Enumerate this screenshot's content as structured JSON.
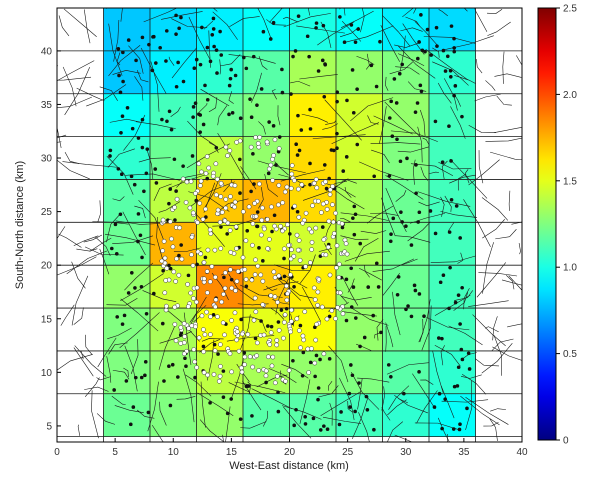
{
  "chart_data": {
    "type": "heatmap",
    "title": "",
    "xlabel": "West-East distance (km)",
    "ylabel": "South-North distance (km)",
    "xlim": [
      0,
      40
    ],
    "ylim": [
      3.5,
      44
    ],
    "xticks": [
      0,
      5,
      10,
      15,
      20,
      25,
      30,
      35,
      40
    ],
    "yticks": [
      5,
      10,
      15,
      20,
      25,
      30,
      35,
      40
    ],
    "grid": true,
    "cell_x_edges": [
      4,
      8,
      12,
      16,
      20,
      24,
      28,
      32,
      36
    ],
    "cell_y_edges": [
      4,
      8,
      12,
      16,
      20,
      24,
      28,
      32,
      36,
      40,
      44
    ],
    "cell_values": [
      [
        1.2,
        1.25,
        1.3,
        1.15,
        1.15,
        1.1,
        1.05,
        0.95
      ],
      [
        1.25,
        1.3,
        1.4,
        1.35,
        1.3,
        1.25,
        1.15,
        1.05
      ],
      [
        1.25,
        1.35,
        1.55,
        1.5,
        1.55,
        1.3,
        1.2,
        1.1
      ],
      [
        1.3,
        1.45,
        1.85,
        1.7,
        1.6,
        1.3,
        1.2,
        1.1
      ],
      [
        1.2,
        1.75,
        1.5,
        1.5,
        1.45,
        1.35,
        1.2,
        1.1
      ],
      [
        1.15,
        1.4,
        1.7,
        1.75,
        1.65,
        1.35,
        1.2,
        1.1
      ],
      [
        1.05,
        1.2,
        1.4,
        1.3,
        1.65,
        1.45,
        1.25,
        1.1
      ],
      [
        0.95,
        1.1,
        1.2,
        1.25,
        1.6,
        1.45,
        1.3,
        1.1
      ],
      [
        0.8,
        0.9,
        1.05,
        1.15,
        1.35,
        1.3,
        1.25,
        1.05
      ],
      [
        0.8,
        0.85,
        0.9,
        0.95,
        1.0,
        0.95,
        0.9,
        0.85
      ]
    ],
    "colorbar": {
      "min": 0,
      "max": 2.5,
      "ticks": [
        0,
        0.5,
        1.0,
        1.5,
        2.0,
        2.5
      ],
      "tick_labels": [
        "0",
        "0.5",
        "1.0",
        "1.5",
        "2.0",
        "2.5"
      ],
      "colormap": "jet"
    }
  }
}
